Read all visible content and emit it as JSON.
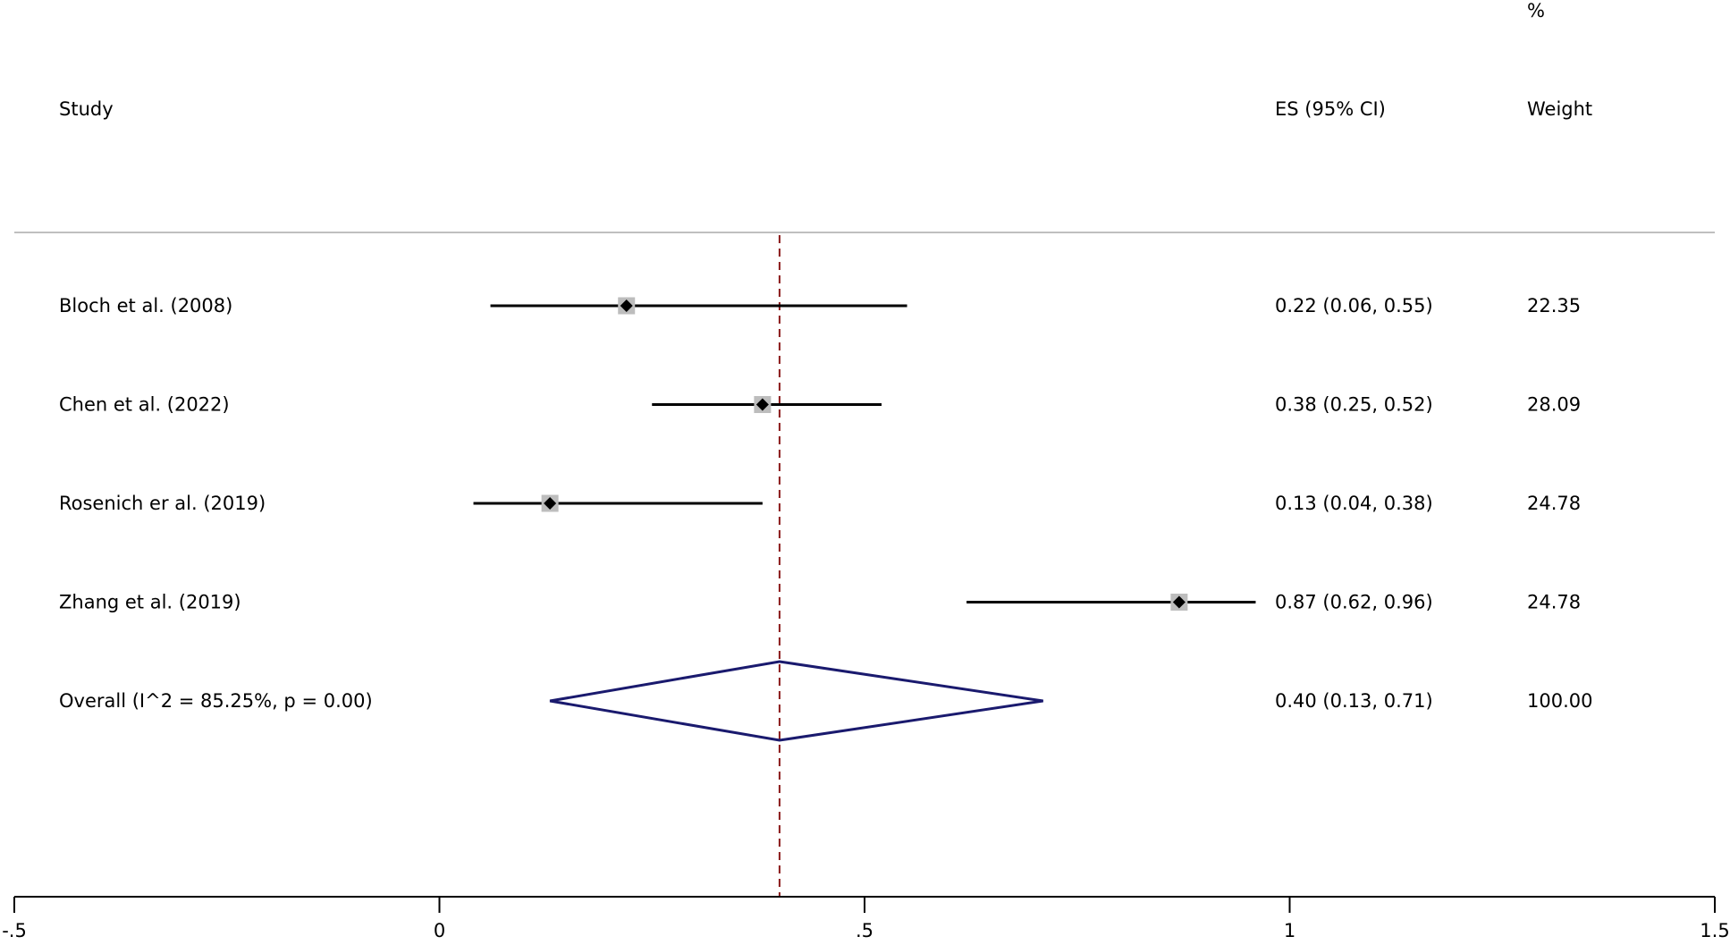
{
  "chart_data": {
    "type": "forest",
    "header": {
      "study": "Study",
      "es": "ES (95% CI)",
      "weight_top": "%",
      "weight": "Weight"
    },
    "studies": [
      {
        "label": "Bloch et al. (2008)",
        "es": 0.22,
        "lo": 0.06,
        "hi": 0.55,
        "es_text": "0.22 (0.06, 0.55)",
        "weight": "22.35"
      },
      {
        "label": "Chen et al. (2022)",
        "es": 0.38,
        "lo": 0.25,
        "hi": 0.52,
        "es_text": "0.38 (0.25, 0.52)",
        "weight": "28.09"
      },
      {
        "label": "Rosenich er al. (2019)",
        "es": 0.13,
        "lo": 0.04,
        "hi": 0.38,
        "es_text": "0.13 (0.04, 0.38)",
        "weight": "24.78"
      },
      {
        "label": "Zhang et al. (2019)",
        "es": 0.87,
        "lo": 0.62,
        "hi": 0.96,
        "es_text": "0.87 (0.62, 0.96)",
        "weight": "24.78"
      }
    ],
    "overall": {
      "label": "Overall  (I^2 = 85.25%, p = 0.00)",
      "es": 0.4,
      "lo": 0.13,
      "hi": 0.71,
      "es_text": "0.40 (0.13, 0.71)",
      "weight": "100.00"
    },
    "xlim": [
      -0.5,
      1.5
    ],
    "xticks": [
      {
        "value": -0.5,
        "label": "-.5"
      },
      {
        "value": 0,
        "label": "0"
      },
      {
        "value": 0.5,
        "label": ".5"
      },
      {
        "value": 1,
        "label": "1"
      },
      {
        "value": 1.5,
        "label": "1.5"
      }
    ],
    "reference_line": 0.4,
    "colors": {
      "diamond": "#1a1a6e",
      "reference": "#8b1a1a",
      "box": "#bdbdbd",
      "line": "#000000",
      "separator": "#bfbfbf"
    }
  }
}
